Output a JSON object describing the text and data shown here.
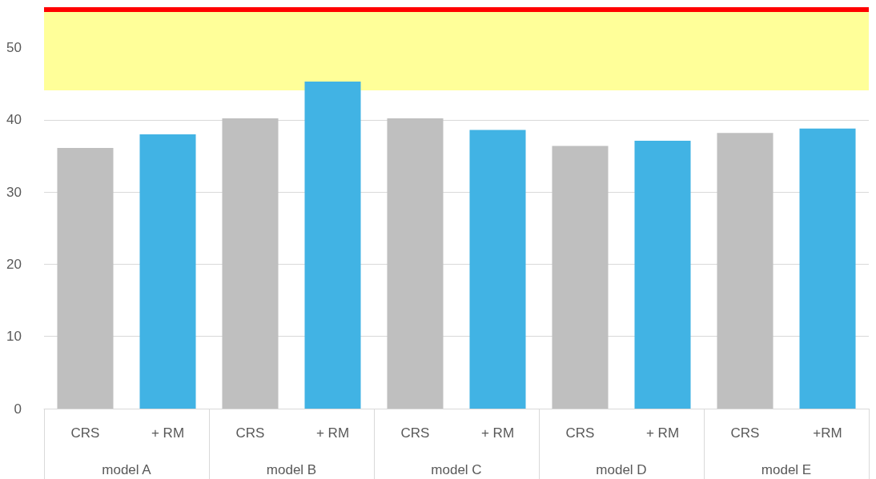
{
  "chart_data": {
    "type": "bar",
    "categories": [
      "CRS",
      "+ RM",
      "CRS",
      "+ RM",
      "CRS",
      "+ RM",
      "CRS",
      "+ RM",
      "CRS",
      "+RM"
    ],
    "values": [
      36.1,
      38.0,
      40.2,
      45.3,
      40.2,
      38.6,
      36.4,
      37.1,
      38.2,
      38.8
    ],
    "colors": [
      "#bfbfbf",
      "#41b3e4",
      "#bfbfbf",
      "#41b3e4",
      "#bfbfbf",
      "#41b3e4",
      "#bfbfbf",
      "#41b3e4",
      "#bfbfbf",
      "#41b3e4"
    ],
    "annotations": [
      "model A",
      "model B",
      "model C",
      "model D",
      "model E"
    ],
    "ylim": [
      0,
      55.5
    ],
    "yticks": [
      0,
      10,
      20,
      30,
      40,
      50
    ],
    "grid": "y",
    "ref_lines": [
      {
        "axis": "y",
        "value": 55.3,
        "color": "#ff0000"
      }
    ],
    "bands": [
      {
        "axis": "y",
        "from": 44.1,
        "to": 55.3,
        "color": "#ffff99"
      }
    ]
  }
}
